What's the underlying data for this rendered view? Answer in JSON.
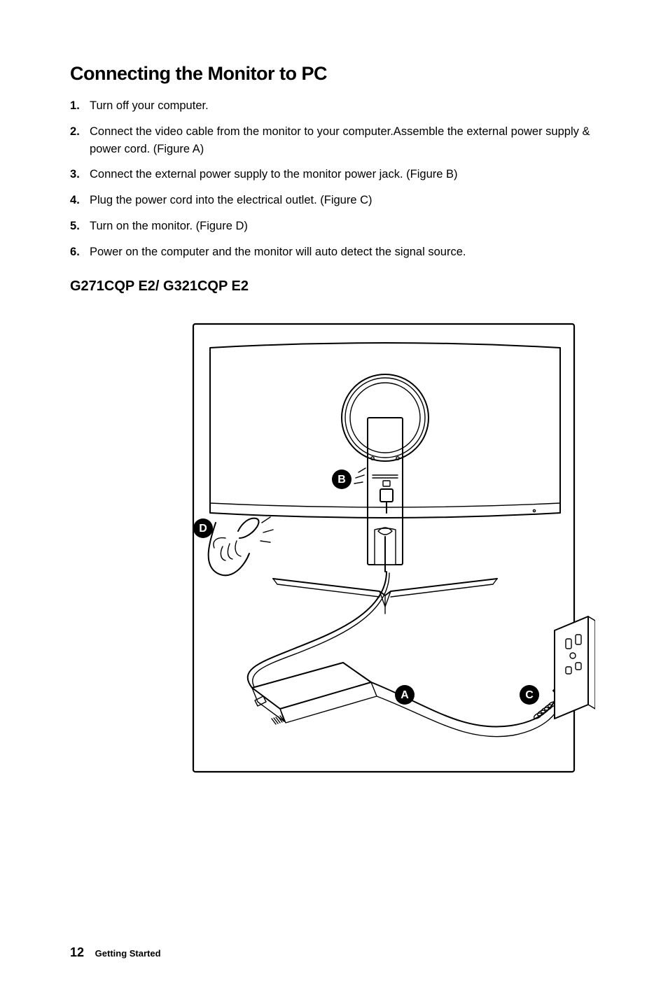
{
  "page": {
    "number": "12",
    "section": "Getting Started"
  },
  "heading": "Connecting the Monitor to PC",
  "steps": [
    "Turn off your computer.",
    "Connect the video cable from the monitor to your computer.Assemble the external power supply & power cord. (Figure A)",
    "Connect the external power supply to the monitor power jack. (Figure B)",
    "Plug the power cord into the electrical outlet. (Figure C)",
    "Turn on the monitor. (Figure D)",
    "Power on the computer and the monitor will auto detect the signal source."
  ],
  "subheading": "G271CQP E2/ G321CQP E2",
  "labels": {
    "a": "A",
    "b": "B",
    "c": "C",
    "d": "D"
  },
  "style": {
    "page_bg": "#ffffff",
    "text_color": "#000000",
    "title_fontsize": 27,
    "body_fontsize": 16.5,
    "sub_fontsize": 20,
    "footer_num_fontsize": 18,
    "footer_label_fontsize": 13,
    "stroke": "#000000",
    "stroke_w_frame": 2.2,
    "stroke_w_main": 2.0,
    "stroke_w_thin": 1.4,
    "label_radius": 14,
    "label_bg": "#000000",
    "label_fg": "#ffffff",
    "label_fontsize": 16
  }
}
